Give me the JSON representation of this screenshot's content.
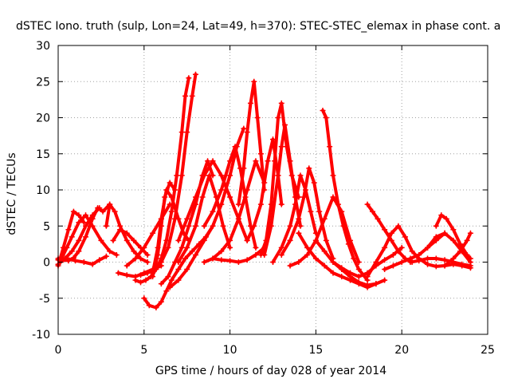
{
  "chart_data": {
    "type": "scatter",
    "title": "dSTEC Iono. truth (sulp, Lon=24, Lat=49, h=370): STEC-STEC_elemax in phase cont. a",
    "xlabel": "GPS time / hours of day 028 of year 2014",
    "ylabel": "dSTEC  / TECUs",
    "xlim": [
      0,
      25
    ],
    "ylim": [
      -10,
      30
    ],
    "xticks": [
      0,
      5,
      10,
      15,
      20,
      25
    ],
    "yticks": [
      -10,
      -5,
      0,
      5,
      10,
      15,
      20,
      25,
      30
    ],
    "grid": true,
    "marker": "+",
    "color": "#ff0000",
    "series": [
      {
        "x": [
          0.0,
          0.3,
          0.6,
          0.9,
          1.2,
          1.6,
          2.0,
          2.3,
          2.6,
          3.0
        ],
        "y": [
          0.5,
          0.3,
          0.2,
          0.6,
          1.5,
          3.5,
          6.0,
          7.5,
          7.0,
          8.0
        ]
      },
      {
        "x": [
          0.0,
          0.3,
          0.6,
          0.9,
          1.2,
          1.5
        ],
        "y": [
          -0.5,
          2.0,
          4.5,
          7.0,
          6.5,
          5.5
        ]
      },
      {
        "x": [
          0.0,
          0.4,
          0.8,
          1.2,
          1.6,
          2.0,
          2.4
        ],
        "y": [
          -0.3,
          0.5,
          1.5,
          3.0,
          5.0,
          6.5,
          7.5
        ]
      },
      {
        "x": [
          0.2,
          0.5,
          0.8,
          1.2,
          1.6,
          2.0,
          2.5,
          3.0,
          3.4
        ],
        "y": [
          0.5,
          2.0,
          3.5,
          5.5,
          6.5,
          5.0,
          3.0,
          1.5,
          1.0
        ]
      },
      {
        "x": [
          0.0,
          0.5,
          1.0,
          1.5,
          2.0,
          2.4,
          2.8
        ],
        "y": [
          0.3,
          0.5,
          0.2,
          0.0,
          -0.3,
          0.3,
          0.8
        ]
      },
      {
        "x": [
          2.8,
          3.0,
          3.3,
          3.6,
          4.0,
          4.4,
          4.8,
          5.2
        ],
        "y": [
          5.0,
          8.0,
          7.0,
          5.0,
          3.0,
          1.5,
          0.5,
          0.0
        ]
      },
      {
        "x": [
          3.2,
          3.6,
          4.0,
          4.4,
          4.8,
          5.2
        ],
        "y": [
          3.0,
          4.5,
          4.0,
          3.0,
          2.0,
          1.0
        ]
      },
      {
        "x": [
          3.5,
          4.0,
          4.5,
          5.0,
          5.5,
          6.0
        ],
        "y": [
          -1.5,
          -1.8,
          -2.0,
          -1.5,
          -1.0,
          -0.5
        ]
      },
      {
        "x": [
          4.0,
          4.5,
          5.0,
          5.5,
          6.0,
          6.5
        ],
        "y": [
          -0.5,
          0.5,
          2.0,
          4.0,
          6.0,
          8.0
        ]
      },
      {
        "x": [
          4.5,
          4.8,
          5.1,
          5.4,
          5.7,
          6.0,
          6.3,
          6.6,
          6.9,
          7.2,
          7.4,
          7.6
        ],
        "y": [
          -2.5,
          -2.8,
          -2.5,
          -2.0,
          -1.0,
          0.5,
          3.0,
          7.0,
          12.0,
          18.0,
          23.0,
          25.5
        ]
      },
      {
        "x": [
          4.8,
          5.2,
          5.6,
          6.0,
          6.4,
          6.8,
          7.2,
          7.5,
          7.8,
          8.0
        ],
        "y": [
          -1.8,
          -1.5,
          -1.0,
          0.0,
          2.0,
          6.0,
          12.0,
          18.0,
          23.0,
          26.0
        ]
      },
      {
        "x": [
          5.0,
          5.3,
          5.7,
          6.0,
          6.3,
          6.6,
          7.0,
          7.4,
          7.8,
          8.2,
          8.6,
          9.0
        ],
        "y": [
          -5.0,
          -6.0,
          -6.3,
          -5.5,
          -4.0,
          -2.5,
          -1.0,
          0.5,
          1.5,
          2.5,
          3.5,
          5.0
        ]
      },
      {
        "x": [
          5.5,
          5.8,
          6.0,
          6.3,
          6.6,
          7.0,
          7.3,
          7.6
        ],
        "y": [
          -1.5,
          2.0,
          6.0,
          10.0,
          9.0,
          6.0,
          4.0,
          3.0
        ]
      },
      {
        "x": [
          5.5,
          5.8,
          6.0,
          6.2,
          6.5,
          6.8
        ],
        "y": [
          -2.0,
          1.0,
          5.0,
          9.0,
          11.0,
          10.0
        ]
      },
      {
        "x": [
          6.0,
          6.4,
          6.8,
          7.2,
          7.6,
          8.0,
          8.4,
          8.7,
          9.0
        ],
        "y": [
          -3.0,
          -2.0,
          0.0,
          2.0,
          5.0,
          8.0,
          12.0,
          14.0,
          12.0
        ]
      },
      {
        "x": [
          6.5,
          7.0,
          7.5,
          8.0,
          8.5,
          9.0,
          9.5,
          10.0,
          10.4,
          10.8
        ],
        "y": [
          -3.5,
          -2.5,
          -1.0,
          1.0,
          3.0,
          5.0,
          8.0,
          12.0,
          16.0,
          18.5
        ]
      },
      {
        "x": [
          7.0,
          7.5,
          8.0,
          8.5,
          9.0,
          9.5,
          10.0,
          10.5,
          11.0
        ],
        "y": [
          3.0,
          6.0,
          9.0,
          12.0,
          14.0,
          12.0,
          9.0,
          6.0,
          3.0
        ]
      },
      {
        "x": [
          7.0,
          7.5,
          8.0,
          8.4,
          8.8,
          9.2,
          9.6,
          10.0
        ],
        "y": [
          0.0,
          2.0,
          5.0,
          9.0,
          12.0,
          9.0,
          5.0,
          2.0
        ]
      },
      {
        "x": [
          8.5,
          9.0,
          9.5,
          10.0,
          10.3,
          10.6,
          10.9,
          11.2,
          11.5
        ],
        "y": [
          5.0,
          7.0,
          10.0,
          14.0,
          16.0,
          13.0,
          9.0,
          5.0,
          2.0
        ]
      },
      {
        "x": [
          8.5,
          9.0,
          9.5,
          10.0,
          10.5,
          11.0,
          11.5,
          12.0
        ],
        "y": [
          0.0,
          0.5,
          1.5,
          3.0,
          6.0,
          10.0,
          14.0,
          11.0
        ]
      },
      {
        "x": [
          9.0,
          9.5,
          10.0,
          10.5,
          11.0,
          11.5,
          12.0
        ],
        "y": [
          0.5,
          0.3,
          0.2,
          0.0,
          0.3,
          1.0,
          2.0
        ]
      },
      {
        "x": [
          10.5,
          10.8,
          11.0,
          11.2,
          11.4,
          11.6,
          11.8,
          12.0
        ],
        "y": [
          8.0,
          13.0,
          18.0,
          22.0,
          25.0,
          20.0,
          15.0,
          10.0
        ]
      },
      {
        "x": [
          11.0,
          11.4,
          11.8,
          12.2,
          12.5,
          12.8,
          13.0
        ],
        "y": [
          3.0,
          5.0,
          8.0,
          14.0,
          17.0,
          12.0,
          8.0
        ]
      },
      {
        "x": [
          11.8,
          12.1,
          12.4,
          12.6,
          12.8,
          13.0,
          13.3,
          13.6,
          14.0
        ],
        "y": [
          1.0,
          3.0,
          8.0,
          14.0,
          20.0,
          22.0,
          16.0,
          12.0,
          9.0
        ]
      },
      {
        "x": [
          12.0,
          12.4,
          12.8,
          13.0,
          13.2,
          13.5,
          13.8,
          14.1
        ],
        "y": [
          1.0,
          5.0,
          12.0,
          16.0,
          19.0,
          14.0,
          9.0,
          5.0
        ]
      },
      {
        "x": [
          12.5,
          13.0,
          13.5,
          13.8,
          14.1,
          14.4,
          14.7,
          15.0
        ],
        "y": [
          0.0,
          2.0,
          5.0,
          8.0,
          12.0,
          10.0,
          7.0,
          4.0
        ]
      },
      {
        "x": [
          13.0,
          13.5,
          14.0,
          14.3,
          14.6,
          14.9,
          15.2,
          15.6,
          16.0
        ],
        "y": [
          1.0,
          3.0,
          6.0,
          9.0,
          13.0,
          11.0,
          7.0,
          3.0,
          0.5
        ]
      },
      {
        "x": [
          13.5,
          14.0,
          14.5,
          15.0,
          15.5,
          16.0,
          16.5,
          17.0,
          17.5
        ],
        "y": [
          -0.5,
          0.0,
          1.0,
          3.0,
          6.0,
          9.0,
          7.0,
          3.0,
          0.0
        ]
      },
      {
        "x": [
          15.4,
          15.6,
          15.8,
          16.0,
          16.3,
          16.6,
          16.9,
          17.2,
          17.5,
          18.0
        ],
        "y": [
          21.0,
          20.0,
          16.0,
          12.0,
          8.0,
          5.0,
          2.5,
          0.5,
          -1.0,
          -2.5
        ]
      },
      {
        "x": [
          14.0,
          14.5,
          15.0,
          15.5,
          16.0,
          16.5,
          17.0,
          17.5,
          18.0,
          18.5
        ],
        "y": [
          4.0,
          2.0,
          0.5,
          -0.5,
          -1.5,
          -2.0,
          -2.5,
          -3.0,
          -3.5,
          -3.0
        ]
      },
      {
        "x": [
          15.0,
          15.5,
          16.0,
          16.5,
          17.0,
          17.5,
          18.0,
          18.5,
          19.0
        ],
        "y": [
          3.0,
          1.5,
          0.0,
          -1.0,
          -2.0,
          -2.8,
          -3.2,
          -3.0,
          -2.5
        ]
      },
      {
        "x": [
          16.0,
          16.5,
          17.0,
          17.5,
          18.0,
          18.5,
          19.0,
          19.5,
          20.0
        ],
        "y": [
          0.0,
          -0.8,
          -1.5,
          -2.0,
          -1.5,
          -0.5,
          0.3,
          1.0,
          2.0
        ]
      },
      {
        "x": [
          18.0,
          18.3,
          18.6,
          19.0,
          19.4,
          19.8,
          20.2,
          20.6
        ],
        "y": [
          8.0,
          7.0,
          6.0,
          4.5,
          3.0,
          1.5,
          0.5,
          0.0
        ]
      },
      {
        "x": [
          18.0,
          18.5,
          19.0,
          19.4,
          19.8,
          20.2,
          20.6,
          21.0
        ],
        "y": [
          -2.0,
          0.0,
          2.0,
          4.0,
          5.0,
          3.5,
          1.5,
          0.5
        ]
      },
      {
        "x": [
          19.0,
          19.5,
          20.0,
          20.5,
          21.0,
          21.5,
          22.0,
          22.5
        ],
        "y": [
          -1.0,
          -0.5,
          0.0,
          0.5,
          1.0,
          2.0,
          3.5,
          4.0
        ]
      },
      {
        "x": [
          20.5,
          21.0,
          21.5,
          22.0,
          22.5,
          23.0,
          23.5,
          24.0
        ],
        "y": [
          0.0,
          0.2,
          0.5,
          0.5,
          0.3,
          0.0,
          -0.3,
          -0.5
        ]
      },
      {
        "x": [
          21.5,
          22.0,
          22.5,
          23.0,
          23.5,
          24.0
        ],
        "y": [
          2.0,
          3.0,
          4.0,
          3.0,
          1.5,
          0.0
        ]
      },
      {
        "x": [
          22.0,
          22.3,
          22.6,
          23.0,
          23.4,
          23.8,
          24.0
        ],
        "y": [
          5.0,
          6.5,
          6.0,
          4.5,
          2.5,
          1.0,
          0.5
        ]
      },
      {
        "x": [
          22.5,
          23.0,
          23.4,
          23.8,
          24.0
        ],
        "y": [
          -0.5,
          0.5,
          1.5,
          3.0,
          4.0
        ]
      },
      {
        "x": [
          21.0,
          21.5,
          22.0,
          22.5,
          23.0,
          23.5,
          24.0
        ],
        "y": [
          0.5,
          -0.3,
          -0.6,
          -0.5,
          -0.3,
          -0.5,
          -0.8
        ]
      }
    ]
  }
}
